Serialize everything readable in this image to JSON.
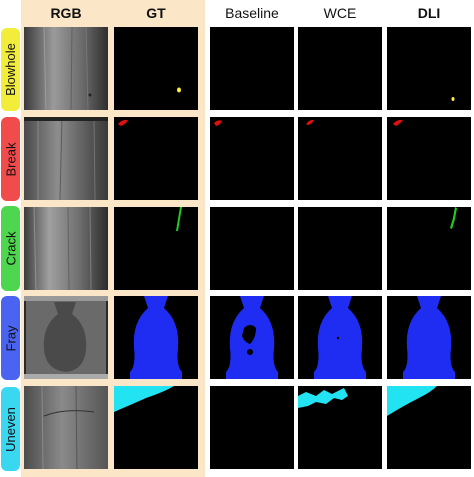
{
  "columns": [
    {
      "key": "rgb",
      "label": "RGB",
      "bold": true
    },
    {
      "key": "gt",
      "label": "GT",
      "bold": true
    },
    {
      "key": "baseline",
      "label": "Baseline",
      "bold": false
    },
    {
      "key": "wce",
      "label": "WCE",
      "bold": false
    },
    {
      "key": "dli",
      "label": "DLI",
      "bold": true
    }
  ],
  "rows": [
    {
      "key": "blowhole",
      "label": "Blowhole",
      "color": "#f2ec3a"
    },
    {
      "key": "break",
      "label": "Break",
      "color": "#f24b4b"
    },
    {
      "key": "crack",
      "label": "Crack",
      "color": "#4fd64f"
    },
    {
      "key": "fray",
      "label": "Fray",
      "color": "#4a63f0"
    },
    {
      "key": "uneven",
      "label": "Uneven",
      "color": "#39d7f0"
    }
  ],
  "mask_colors": {
    "blowhole": "#ffee44",
    "break": "#e01010",
    "crack": "#22cc22",
    "fray": "#1f2df2",
    "uneven": "#22e3f2"
  },
  "highlight_color": "#fbe6c8"
}
